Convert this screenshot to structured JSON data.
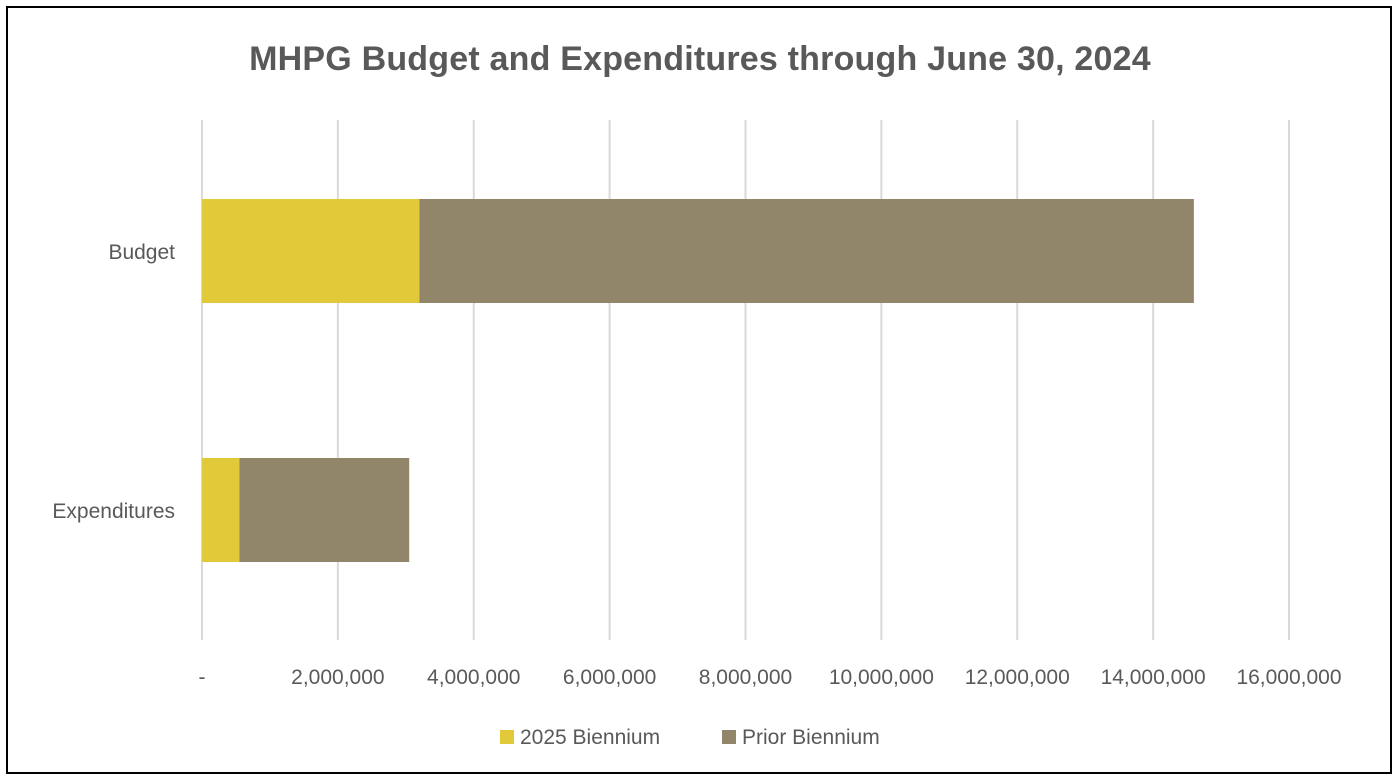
{
  "chart_data": {
    "type": "bar",
    "orientation": "horizontal",
    "stacked": true,
    "title": "MHPG Budget and Expenditures through June 30, 2024",
    "categories": [
      "Budget",
      "Expenditures"
    ],
    "series": [
      {
        "name": "2025 Biennium",
        "values": [
          3200000,
          550000
        ],
        "color": "#E2C93A"
      },
      {
        "name": "Prior Biennium",
        "values": [
          11400000,
          2500000
        ],
        "color": "#918669"
      }
    ],
    "xlim": [
      0,
      16000000
    ],
    "xticks": [
      0,
      2000000,
      4000000,
      6000000,
      8000000,
      10000000,
      12000000,
      14000000,
      16000000
    ],
    "xtick_labels": [
      "-",
      "2,000,000",
      "4,000,000",
      "6,000,000",
      "8,000,000",
      "10,000,000",
      "12,000,000",
      "14,000,000",
      "16,000,000"
    ],
    "grid": true,
    "legend_position": "bottom"
  }
}
